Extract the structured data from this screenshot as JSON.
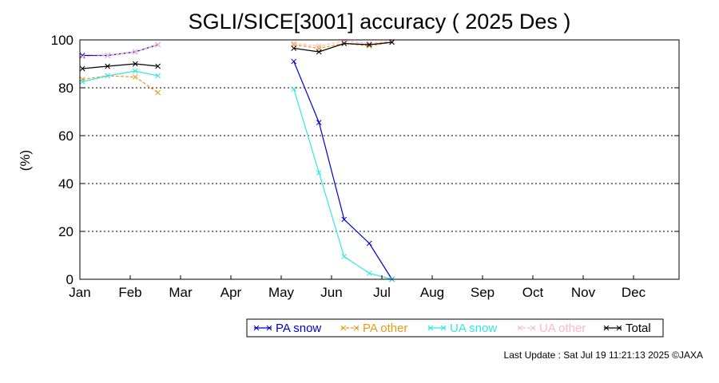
{
  "chart_data": {
    "type": "line",
    "title": "SGLI/SICE[3001] accuracy ( 2025 Des )",
    "ylabel": "(%)",
    "xlabel": "",
    "ylim": [
      0,
      100
    ],
    "yticks": [
      0,
      20,
      40,
      60,
      80,
      100
    ],
    "months": [
      "Jan",
      "Feb",
      "Mar",
      "Apr",
      "May",
      "Jun",
      "Jul",
      "Aug",
      "Sep",
      "Oct",
      "Nov",
      "Dec"
    ],
    "x_unit": "month (fractional position, 0 = start of Jan)",
    "grid": true,
    "legend_position": "bottom",
    "series": [
      {
        "name": "PA snow",
        "color": "#0000cc",
        "segments": [
          [
            [
              0.05,
              93.5
            ],
            [
              0.55,
              93.5
            ],
            [
              1.1,
              95.0
            ],
            [
              1.55,
              98.0
            ]
          ],
          [
            [
              4.25,
              91.0
            ],
            [
              4.75,
              65.5
            ],
            [
              5.25,
              25.0
            ],
            [
              5.75,
              15.0
            ],
            [
              6.2,
              0.0
            ]
          ]
        ]
      },
      {
        "name": "PA other",
        "color": "#e89a1a",
        "segments": [
          [
            [
              0.05,
              83.5
            ],
            [
              0.55,
              85.0
            ],
            [
              1.1,
              84.5
            ],
            [
              1.55,
              78.0
            ]
          ],
          [
            [
              4.25,
              98.0
            ],
            [
              4.75,
              96.5
            ],
            [
              5.25,
              98.5
            ],
            [
              5.75,
              97.5
            ],
            [
              6.2,
              99.0
            ]
          ]
        ]
      },
      {
        "name": "UA snow",
        "color": "#33e6e6",
        "segments": [
          [
            [
              0.05,
              82.5
            ],
            [
              0.55,
              85.0
            ],
            [
              1.1,
              87.0
            ],
            [
              1.55,
              85.0
            ]
          ],
          [
            [
              4.25,
              79.5
            ],
            [
              4.75,
              44.5
            ],
            [
              5.25,
              9.5
            ],
            [
              5.75,
              2.5
            ],
            [
              6.2,
              0.0
            ]
          ]
        ]
      },
      {
        "name": "UA other",
        "color": "#ffb6c8",
        "segments": [
          [
            [
              0.05,
              93.0
            ],
            [
              0.55,
              93.5
            ],
            [
              1.1,
              95.0
            ],
            [
              1.55,
              98.0
            ]
          ],
          [
            [
              4.25,
              98.5
            ],
            [
              4.75,
              97.5
            ],
            [
              5.25,
              99.5
            ],
            [
              5.75,
              98.5
            ],
            [
              6.2,
              99.5
            ]
          ]
        ]
      },
      {
        "name": "Total",
        "color": "#000000",
        "segments": [
          [
            [
              0.05,
              88.0
            ],
            [
              0.55,
              89.0
            ],
            [
              1.1,
              90.0
            ],
            [
              1.55,
              89.0
            ]
          ],
          [
            [
              4.25,
              96.5
            ],
            [
              4.75,
              95.0
            ],
            [
              5.25,
              98.5
            ],
            [
              5.75,
              98.0
            ],
            [
              6.2,
              99.0
            ]
          ]
        ]
      }
    ],
    "footer": "Last Update : Sat Jul 19 11:21:13 2025  ©JAXA"
  }
}
